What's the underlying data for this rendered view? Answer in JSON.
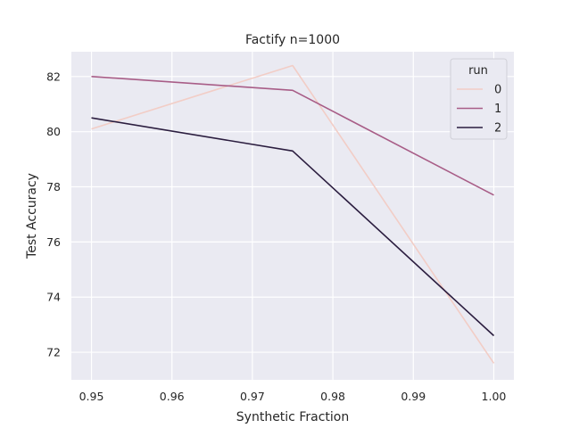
{
  "chart_data": {
    "type": "line",
    "title": "Factify n=1000",
    "xlabel": "Synthetic Fraction",
    "ylabel": "Test Accuracy",
    "x": [
      0.95,
      0.975,
      1.0
    ],
    "xlim": [
      0.9475,
      1.0025
    ],
    "ylim": [
      71.0,
      82.9
    ],
    "xticks": [
      0.95,
      0.96,
      0.97,
      0.98,
      0.99,
      1.0
    ],
    "xtick_labels": [
      "0.95",
      "0.96",
      "0.97",
      "0.98",
      "0.99",
      "1.00"
    ],
    "yticks": [
      72,
      74,
      76,
      78,
      80,
      82
    ],
    "ytick_labels": [
      "72",
      "74",
      "76",
      "78",
      "80",
      "82"
    ],
    "grid": true,
    "legend": {
      "title": "run",
      "placement": "top-right"
    },
    "series": [
      {
        "name": "0",
        "color": "#f2cdc6",
        "values": [
          80.1,
          82.4,
          71.6
        ]
      },
      {
        "name": "1",
        "color": "#a85d87",
        "values": [
          82.0,
          81.5,
          77.7
        ]
      },
      {
        "name": "2",
        "color": "#2b1d3f",
        "values": [
          80.5,
          79.3,
          72.6
        ]
      }
    ]
  }
}
